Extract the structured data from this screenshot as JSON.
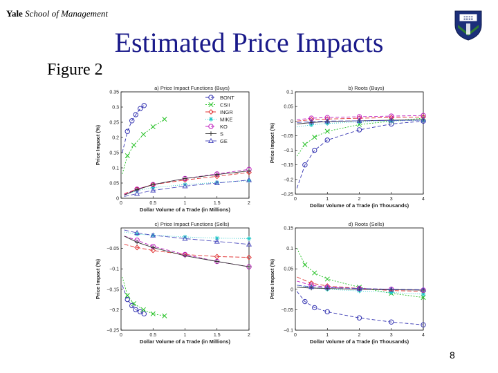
{
  "header": {
    "brand_bold": "Yale",
    "brand_italic": "School of Management",
    "title": "Estimated Price Impacts",
    "figure_label": "Figure 2",
    "slide_number": "8"
  },
  "colors": {
    "title": "#1a1a8a",
    "crest_blue": "#1c2f7a",
    "crest_green": "#2e7d32",
    "BONT": "#3030b0",
    "CSII": "#22c022",
    "INGR": "#e03030",
    "MIKE": "#20c8c8",
    "KO": "#c020c0",
    "S": "#303030",
    "GE": "#5050c0"
  },
  "chart_data": [
    {
      "type": "line",
      "title": "a) Price Impact Functions (Buys)",
      "xlabel": "Dollar Volume of a Trade (in Millions)",
      "ylabel": "Price Impact (%)",
      "xlim": [
        0,
        2
      ],
      "ylim": [
        0,
        0.35
      ],
      "xticks": [
        "0",
        "0.5",
        "1",
        "1.5",
        "2"
      ],
      "yticks": [
        "0",
        "0.05",
        "0.1",
        "0.15",
        "0.2",
        "0.25",
        "0.3",
        "0.35"
      ],
      "legend_position": "top-right",
      "series": [
        {
          "name": "BONT",
          "x": [
            0.02,
            0.1,
            0.17,
            0.23,
            0.3,
            0.36
          ],
          "y": [
            0.15,
            0.22,
            0.255,
            0.275,
            0.295,
            0.305
          ]
        },
        {
          "name": "CSII",
          "x": [
            0.02,
            0.1,
            0.2,
            0.35,
            0.5,
            0.68
          ],
          "y": [
            0.08,
            0.14,
            0.175,
            0.21,
            0.235,
            0.26
          ]
        },
        {
          "name": "INGR",
          "x": [
            0.05,
            0.25,
            0.5,
            1.0,
            1.5,
            2.0
          ],
          "y": [
            0.015,
            0.03,
            0.045,
            0.06,
            0.072,
            0.085
          ]
        },
        {
          "name": "MIKE",
          "x": [
            0.05,
            0.25,
            0.5,
            1.0,
            1.5,
            2.0
          ],
          "y": [
            0.012,
            0.025,
            0.035,
            0.045,
            0.052,
            0.058
          ]
        },
        {
          "name": "KO",
          "x": [
            0.05,
            0.25,
            0.5,
            1.0,
            1.5,
            2.0
          ],
          "y": [
            0.012,
            0.03,
            0.045,
            0.065,
            0.08,
            0.095
          ]
        },
        {
          "name": "S",
          "x": [
            0.05,
            0.25,
            0.5,
            1.0,
            1.5,
            2.0
          ],
          "y": [
            0.01,
            0.028,
            0.045,
            0.065,
            0.078,
            0.09
          ]
        },
        {
          "name": "GE",
          "x": [
            0.05,
            0.25,
            0.5,
            1.0,
            1.5,
            2.0
          ],
          "y": [
            0.006,
            0.015,
            0.026,
            0.04,
            0.05,
            0.06
          ]
        }
      ]
    },
    {
      "type": "line",
      "title": "b) Roots (Buys)",
      "xlabel": "Dollar Volume of a Trade (in Thousands)",
      "ylabel": "Price Impact (%)",
      "xlim": [
        0,
        4
      ],
      "ylim": [
        -0.25,
        0.1
      ],
      "xticks": [
        "0",
        "1",
        "2",
        "3",
        "4"
      ],
      "yticks": [
        "-0.25",
        "-0.2",
        "-0.15",
        "-0.1",
        "-0.05",
        "0",
        "0.05",
        "0.1"
      ],
      "series": [
        {
          "name": "BONT",
          "x": [
            0.05,
            0.3,
            0.6,
            1.0,
            2.0,
            3.0,
            4.0
          ],
          "y": [
            -0.23,
            -0.15,
            -0.1,
            -0.065,
            -0.03,
            -0.01,
            0.0
          ]
        },
        {
          "name": "CSII",
          "x": [
            0.05,
            0.3,
            0.6,
            1.0,
            2.0,
            3.0,
            4.0
          ],
          "y": [
            -0.12,
            -0.08,
            -0.055,
            -0.035,
            -0.012,
            0.0,
            0.01
          ]
        },
        {
          "name": "INGR",
          "x": [
            0.05,
            0.5,
            1.0,
            2.0,
            3.0,
            4.0
          ],
          "y": [
            0.0,
            0.005,
            0.007,
            0.01,
            0.012,
            0.014
          ]
        },
        {
          "name": "MIKE",
          "x": [
            0.05,
            0.5,
            1.0,
            2.0,
            3.0,
            4.0
          ],
          "y": [
            -0.02,
            -0.013,
            -0.008,
            -0.003,
            0.0,
            0.003
          ]
        },
        {
          "name": "KO",
          "x": [
            0.05,
            0.5,
            1.0,
            2.0,
            3.0,
            4.0
          ],
          "y": [
            0.005,
            0.01,
            0.012,
            0.015,
            0.017,
            0.019
          ]
        },
        {
          "name": "S",
          "x": [
            0.05,
            0.5,
            1.0,
            2.0,
            3.0,
            4.0
          ],
          "y": [
            -0.01,
            -0.005,
            -0.002,
            0.001,
            0.003,
            0.004
          ]
        },
        {
          "name": "GE",
          "x": [
            0.05,
            0.5,
            1.0,
            2.0,
            3.0,
            4.0
          ],
          "y": [
            -0.005,
            -0.002,
            0.0,
            0.001,
            0.002,
            0.003
          ]
        }
      ]
    },
    {
      "type": "line",
      "title": "c) Price Impact Functions (Sells)",
      "xlabel": "Dollar Volume of a Trade (in Millions)",
      "ylabel": "Price Impact (%)",
      "xlim": [
        0,
        2
      ],
      "ylim": [
        -0.25,
        0
      ],
      "xticks": [
        "0",
        "0.5",
        "1",
        "1.5",
        "2"
      ],
      "yticks": [
        "-0.25",
        "-0.2",
        "-0.15",
        "-0.1",
        "-0.05"
      ],
      "series": [
        {
          "name": "BONT",
          "x": [
            0.02,
            0.1,
            0.17,
            0.23,
            0.3,
            0.36
          ],
          "y": [
            -0.14,
            -0.175,
            -0.19,
            -0.2,
            -0.205,
            -0.21
          ]
        },
        {
          "name": "CSII",
          "x": [
            0.02,
            0.1,
            0.2,
            0.35,
            0.5,
            0.68
          ],
          "y": [
            -0.12,
            -0.165,
            -0.185,
            -0.2,
            -0.21,
            -0.215
          ]
        },
        {
          "name": "INGR",
          "x": [
            0.05,
            0.25,
            0.5,
            1.0,
            1.5,
            2.0
          ],
          "y": [
            -0.04,
            -0.048,
            -0.055,
            -0.065,
            -0.07,
            -0.072
          ]
        },
        {
          "name": "MIKE",
          "x": [
            0.05,
            0.25,
            0.5,
            1.0,
            1.5,
            2.0
          ],
          "y": [
            -0.01,
            -0.015,
            -0.018,
            -0.022,
            -0.025,
            -0.026
          ]
        },
        {
          "name": "KO",
          "x": [
            0.05,
            0.25,
            0.5,
            1.0,
            1.5,
            2.0
          ],
          "y": [
            -0.02,
            -0.03,
            -0.045,
            -0.065,
            -0.082,
            -0.095
          ]
        },
        {
          "name": "S",
          "x": [
            0.05,
            0.25,
            0.5,
            1.0,
            1.5,
            2.0
          ],
          "y": [
            -0.02,
            -0.035,
            -0.048,
            -0.068,
            -0.082,
            -0.095
          ]
        },
        {
          "name": "GE",
          "x": [
            0.05,
            0.25,
            0.5,
            1.0,
            1.5,
            2.0
          ],
          "y": [
            -0.005,
            -0.012,
            -0.018,
            -0.026,
            -0.033,
            -0.04
          ]
        }
      ]
    },
    {
      "type": "line",
      "title": "d) Roots (Sells)",
      "xlabel": "Dollar Volume of a Trade (in Thousands)",
      "ylabel": "Price Impact (%)",
      "xlim": [
        0,
        4
      ],
      "ylim": [
        -0.1,
        0.15
      ],
      "xticks": [
        "0",
        "1",
        "2",
        "3",
        "4"
      ],
      "yticks": [
        "-0.1",
        "-0.05",
        "0",
        "0.05",
        "0.1",
        "0.15"
      ],
      "series": [
        {
          "name": "BONT",
          "x": [
            0.05,
            0.3,
            0.6,
            1.0,
            2.0,
            3.0,
            4.0
          ],
          "y": [
            -0.005,
            -0.03,
            -0.045,
            -0.055,
            -0.07,
            -0.08,
            -0.087
          ]
        },
        {
          "name": "CSII",
          "x": [
            0.05,
            0.3,
            0.6,
            1.0,
            2.0,
            3.0,
            4.0
          ],
          "y": [
            0.1,
            0.06,
            0.04,
            0.025,
            0.005,
            -0.01,
            -0.02
          ]
        },
        {
          "name": "INGR",
          "x": [
            0.05,
            0.5,
            1.0,
            2.0,
            3.0,
            4.0
          ],
          "y": [
            0.03,
            0.015,
            0.008,
            0.002,
            -0.003,
            -0.005
          ]
        },
        {
          "name": "MIKE",
          "x": [
            0.05,
            0.5,
            1.0,
            2.0,
            3.0,
            4.0
          ],
          "y": [
            0.01,
            0.004,
            0.0,
            -0.004,
            -0.008,
            -0.012
          ]
        },
        {
          "name": "KO",
          "x": [
            0.05,
            0.5,
            1.0,
            2.0,
            3.0,
            4.0
          ],
          "y": [
            0.02,
            0.01,
            0.005,
            0.002,
            0.0,
            -0.002
          ]
        },
        {
          "name": "S",
          "x": [
            0.05,
            0.5,
            1.0,
            2.0,
            3.0,
            4.0
          ],
          "y": [
            0.005,
            0.003,
            0.002,
            0.0,
            -0.001,
            -0.002
          ]
        },
        {
          "name": "GE",
          "x": [
            0.05,
            0.5,
            1.0,
            2.0,
            3.0,
            4.0
          ],
          "y": [
            0.01,
            0.006,
            0.004,
            0.002,
            0.0,
            -0.001
          ]
        }
      ]
    }
  ]
}
